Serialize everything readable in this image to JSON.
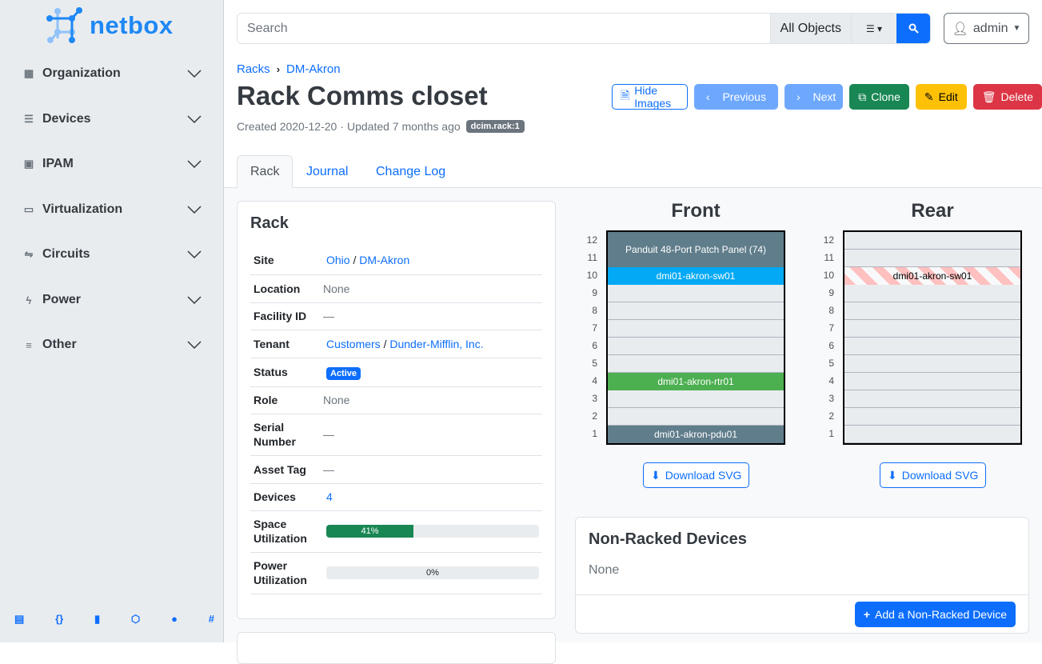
{
  "brand": {
    "name": "netbox",
    "color": "#1e88f5"
  },
  "sidebar": {
    "items": [
      {
        "label": "Organization",
        "icon": "building-icon"
      },
      {
        "label": "Devices",
        "icon": "server-icon"
      },
      {
        "label": "IPAM",
        "icon": "ip-icon"
      },
      {
        "label": "Virtualization",
        "icon": "monitor-icon"
      },
      {
        "label": "Circuits",
        "icon": "circuit-icon"
      },
      {
        "label": "Power",
        "icon": "bolt-icon"
      },
      {
        "label": "Other",
        "icon": "notes-icon"
      }
    ],
    "footer_icons": [
      "book-icon",
      "api-icon",
      "bookmark-icon",
      "graphql-icon",
      "github-icon",
      "slack-icon"
    ]
  },
  "search": {
    "placeholder": "Search",
    "scope": "All Objects"
  },
  "user": {
    "name": "admin"
  },
  "breadcrumb": [
    "Racks",
    "DM-Akron"
  ],
  "page": {
    "title": "Rack Comms closet",
    "created": "Created 2020-12-20",
    "updated": "Updated 7 months ago",
    "tag": "dcim.rack:1",
    "sep": "·"
  },
  "actions": {
    "hide_images": "Hide Images",
    "previous": "Previous",
    "next": "Next",
    "clone": "Clone",
    "edit": "Edit",
    "delete": "Delete"
  },
  "tabs": [
    "Rack",
    "Journal",
    "Change Log"
  ],
  "rack_card": {
    "title": "Rack",
    "rows": {
      "site": {
        "label": "Site",
        "link1": "Ohio",
        "sep": "/",
        "link2": "DM-Akron"
      },
      "location": {
        "label": "Location",
        "value": "None"
      },
      "facility": {
        "label": "Facility ID",
        "value": "—"
      },
      "tenant": {
        "label": "Tenant",
        "link1": "Customers",
        "sep": "/",
        "link2": "Dunder-Mifflin, Inc."
      },
      "status": {
        "label": "Status",
        "value": "Active"
      },
      "role": {
        "label": "Role",
        "value": "None"
      },
      "serial": {
        "label": "Serial Number",
        "value": "—"
      },
      "asset": {
        "label": "Asset Tag",
        "value": "—"
      },
      "devices": {
        "label": "Devices",
        "value": "4"
      },
      "space": {
        "label": "Space Utilization",
        "value": "41%",
        "percent": 41
      },
      "power": {
        "label": "Power Utilization",
        "value": "0%",
        "percent": 0
      }
    }
  },
  "elevations": {
    "front": {
      "title": "Front",
      "devices": [
        {
          "name": "Panduit 48-Port Patch Panel (74)",
          "top": 12,
          "height": 2,
          "color": "#607d8b"
        },
        {
          "name": "dmi01-akron-sw01",
          "top": 10,
          "height": 1,
          "color": "#03a9f4"
        },
        {
          "name": "dmi01-akron-rtr01",
          "top": 4,
          "height": 1,
          "color": "#4caf50"
        },
        {
          "name": "dmi01-akron-pdu01",
          "top": 1,
          "height": 1,
          "color": "#607d8b"
        }
      ]
    },
    "rear": {
      "title": "Rear",
      "devices": [
        {
          "name": "dmi01-akron-sw01",
          "top": 10,
          "height": 1,
          "color": "striped"
        }
      ]
    },
    "units": [
      12,
      11,
      10,
      9,
      8,
      7,
      6,
      5,
      4,
      3,
      2,
      1
    ],
    "download": "Download SVG"
  },
  "non_racked": {
    "title": "Non-Racked Devices",
    "value": "None",
    "add": "Add a Non-Racked Device"
  }
}
